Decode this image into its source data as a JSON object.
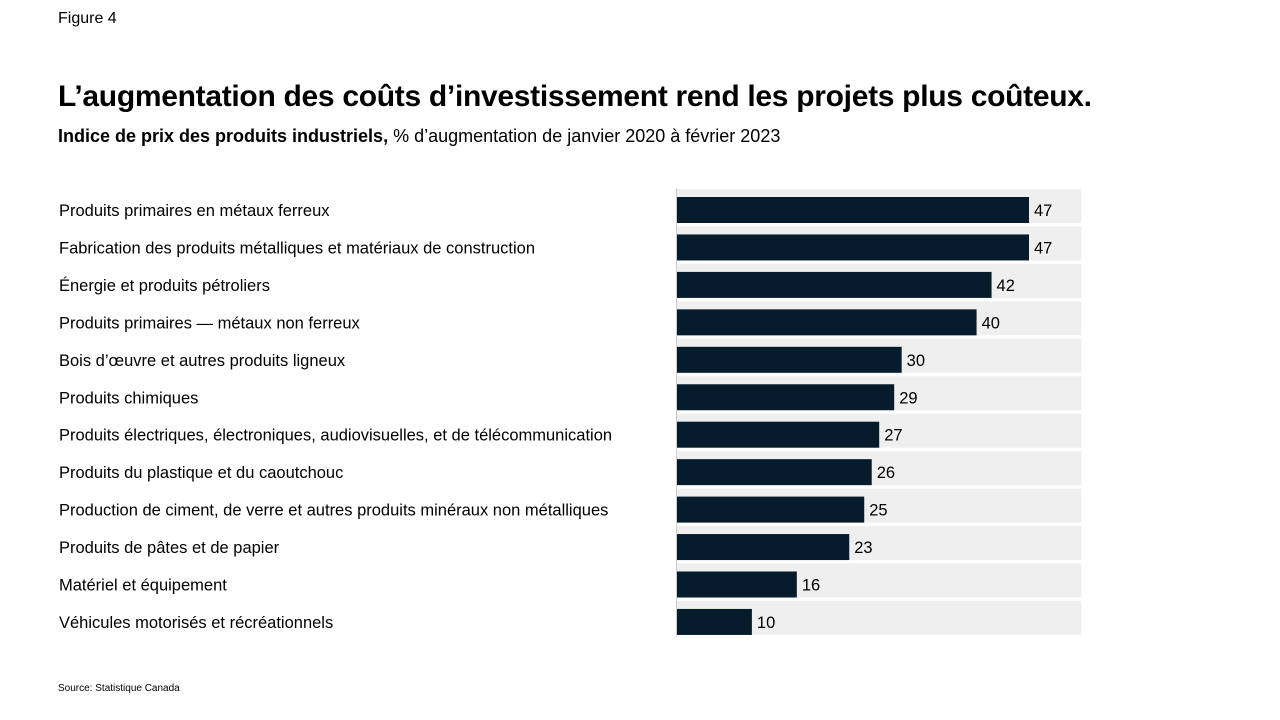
{
  "figure_label": "Figure 4",
  "title": "L’augmentation des coûts d’investissement rend les projets plus coûteux.",
  "subtitle_bold": "Indice de prix des produits industriels,",
  "subtitle_rest": " % d’augmentation de janvier 2020 à février 2023",
  "source": "Source: Statistique Canada",
  "colors": {
    "bar": "#061c2c",
    "track": "#efefef",
    "axis": "#cccccc"
  },
  "chart_data": {
    "type": "bar",
    "orientation": "horizontal",
    "categories": [
      "Produits primaires en métaux ferreux",
      "Fabrication des produits métalliques et matériaux de construction",
      "Énergie et produits pétroliers",
      "Produits primaires — métaux non ferreux",
      "Bois d’œuvre et autres produits ligneux",
      "Produits chimiques",
      "Produits électriques, électroniques, audiovisuelles, et de télécommunication",
      "Produits du plastique et du caoutchouc",
      "Production de ciment, de verre et autres produits minéraux non métalliques",
      "Produits de pâtes et de papier",
      "Matériel et équipement",
      "Véhicules motorisés et récréationnels"
    ],
    "values": [
      47,
      47,
      42,
      40,
      30,
      29,
      27,
      26,
      25,
      23,
      16,
      10
    ],
    "xlim": [
      0,
      54
    ],
    "data_labels": true,
    "grid": false
  }
}
